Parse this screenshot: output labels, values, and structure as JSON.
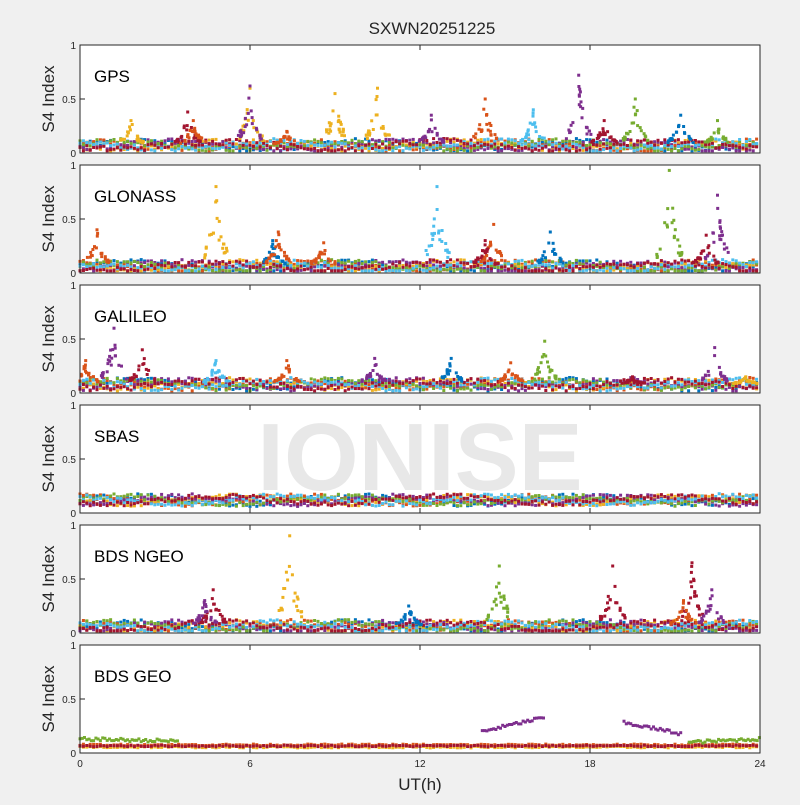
{
  "chart_data": {
    "type": "scatter",
    "title": "SXWN20251225",
    "xlabel": "UT(h)",
    "ylabel": "S4 Index",
    "xlim": [
      0,
      24
    ],
    "ylim": [
      0,
      1
    ],
    "xticks": [
      0,
      6,
      12,
      18,
      24
    ],
    "xtick_labels": [
      "0",
      "6",
      "12",
      "18",
      "24"
    ],
    "yticks": [
      0,
      0.5,
      1
    ],
    "ytick_labels": [
      "0",
      "0.5",
      "1"
    ],
    "watermark": "IONISE",
    "series_colors": [
      "#0072BD",
      "#D95319",
      "#EDB120",
      "#7E2F8E",
      "#77AC30",
      "#4DBEEE",
      "#A2142F"
    ],
    "panels": [
      {
        "label": "GPS",
        "baseline": 0.07,
        "peaks": [
          [
            3.8,
            0.38,
            6
          ],
          [
            4.0,
            0.3,
            1
          ],
          [
            6.0,
            0.6,
            2
          ],
          [
            6.0,
            0.62,
            3
          ],
          [
            9.0,
            0.55,
            2
          ],
          [
            10.5,
            0.6,
            2
          ],
          [
            12.4,
            0.35,
            3
          ],
          [
            14.3,
            0.5,
            1
          ],
          [
            16.0,
            0.4,
            5
          ],
          [
            17.6,
            0.72,
            3
          ],
          [
            18.5,
            0.3,
            6
          ],
          [
            19.6,
            0.5,
            4
          ],
          [
            21.2,
            0.35,
            0
          ],
          [
            22.5,
            0.3,
            4
          ],
          [
            1.8,
            0.3,
            2
          ],
          [
            7.3,
            0.2,
            1
          ]
        ],
        "segments": []
      },
      {
        "label": "GLONASS",
        "baseline": 0.06,
        "peaks": [
          [
            0.6,
            0.4,
            1
          ],
          [
            4.8,
            0.8,
            2
          ],
          [
            6.8,
            0.3,
            0
          ],
          [
            7.0,
            0.38,
            1
          ],
          [
            8.6,
            0.28,
            1
          ],
          [
            12.6,
            0.8,
            5
          ],
          [
            14.6,
            0.45,
            1
          ],
          [
            14.3,
            0.3,
            6
          ],
          [
            16.6,
            0.38,
            0
          ],
          [
            20.8,
            0.95,
            4
          ],
          [
            22.5,
            0.72,
            3
          ],
          [
            22.1,
            0.35,
            6
          ]
        ],
        "segments": []
      },
      {
        "label": "GALILEO",
        "baseline": 0.08,
        "peaks": [
          [
            0.2,
            0.3,
            1
          ],
          [
            1.2,
            0.6,
            3
          ],
          [
            2.2,
            0.4,
            6
          ],
          [
            4.8,
            0.3,
            5
          ],
          [
            7.3,
            0.3,
            1
          ],
          [
            10.4,
            0.32,
            3
          ],
          [
            13.1,
            0.32,
            0
          ],
          [
            15.2,
            0.28,
            1
          ],
          [
            16.4,
            0.48,
            4
          ],
          [
            19.5,
            0.15,
            6
          ],
          [
            22.4,
            0.42,
            3
          ],
          [
            23.5,
            0.15,
            2
          ]
        ],
        "segments": []
      },
      {
        "label": "SBAS",
        "baseline": 0.12,
        "peaks": [],
        "segments": []
      },
      {
        "label": "BDS NGEO",
        "baseline": 0.06,
        "peaks": [
          [
            4.7,
            0.4,
            6
          ],
          [
            4.4,
            0.3,
            3
          ],
          [
            7.4,
            0.9,
            2
          ],
          [
            11.6,
            0.25,
            0
          ],
          [
            14.8,
            0.62,
            4
          ],
          [
            18.8,
            0.62,
            6
          ],
          [
            21.6,
            0.65,
            6
          ],
          [
            22.3,
            0.4,
            3
          ],
          [
            21.3,
            0.3,
            1
          ]
        ],
        "segments": []
      },
      {
        "label": "BDS GEO",
        "baseline": 0.07,
        "peaks": [],
        "segments": [
          [
            0,
            3.5,
            0.13,
            0.11,
            4
          ],
          [
            14.2,
            16.4,
            0.2,
            0.33,
            3
          ],
          [
            19.2,
            21.2,
            0.28,
            0.18,
            3
          ],
          [
            21.5,
            24,
            0.1,
            0.13,
            4
          ]
        ]
      }
    ]
  }
}
